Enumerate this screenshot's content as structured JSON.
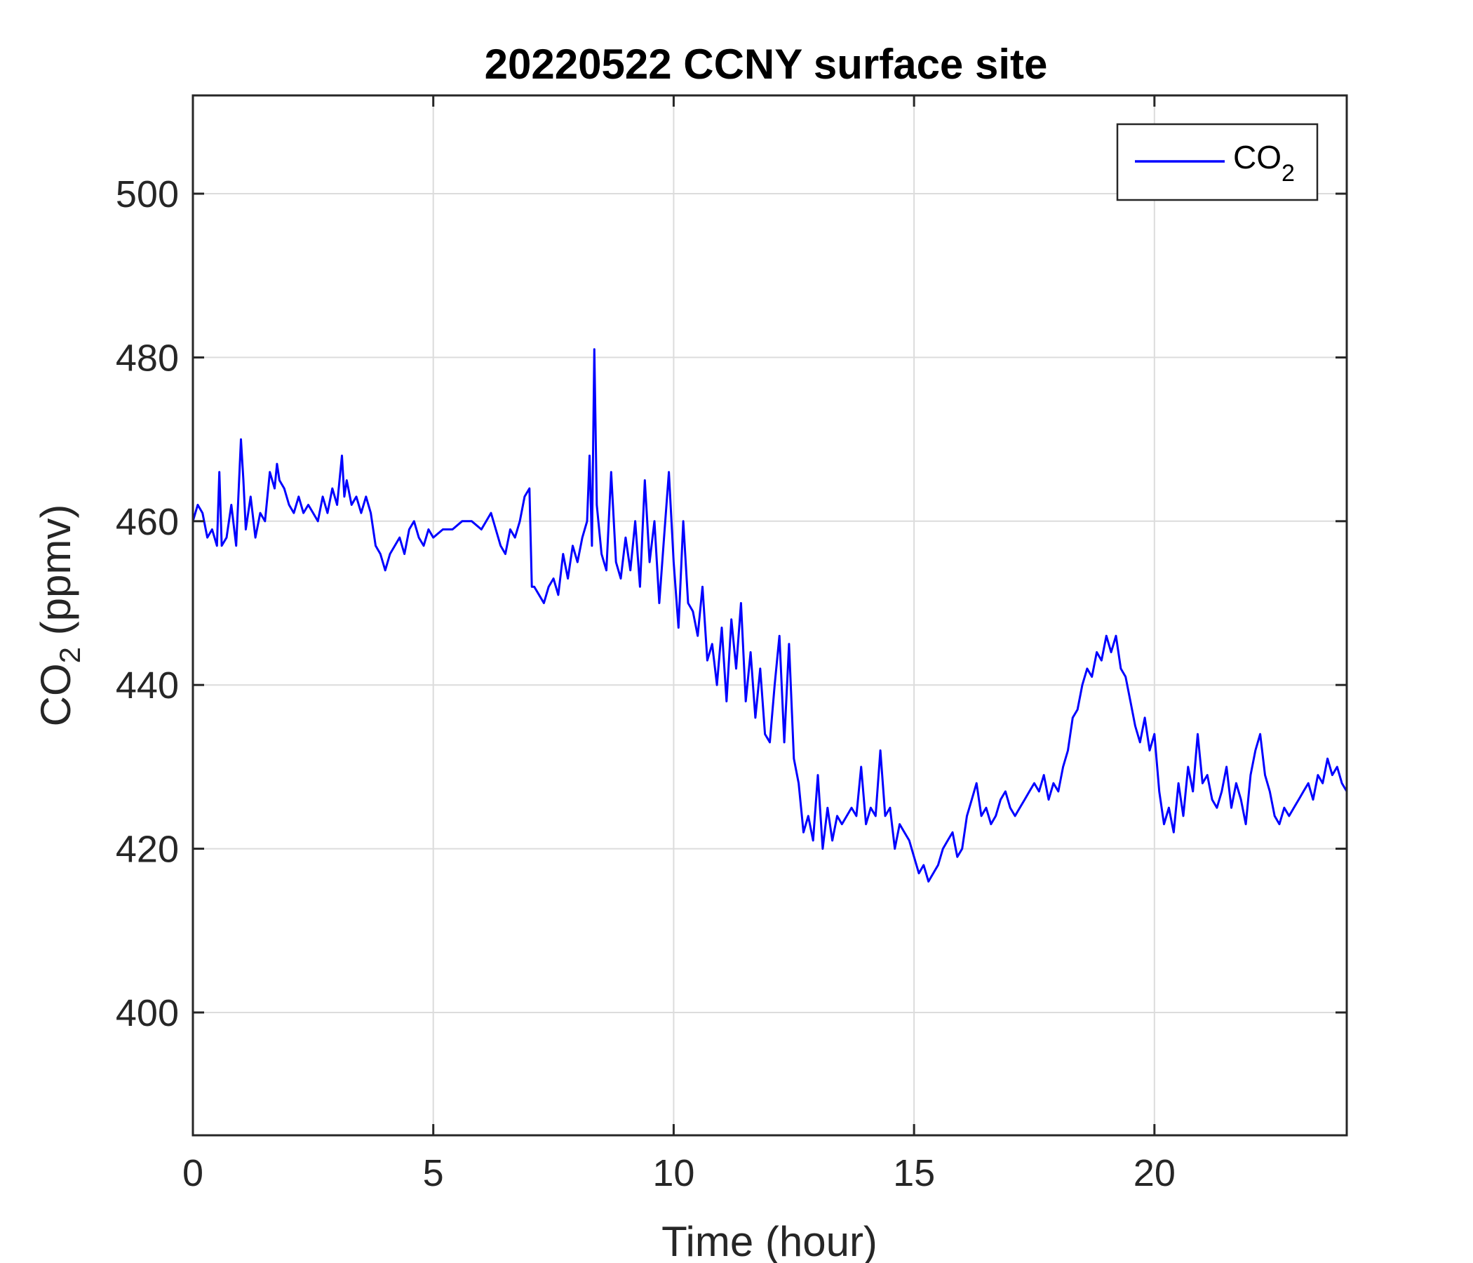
{
  "chart_data": {
    "type": "line",
    "title": "20220522 CCNY surface site",
    "xlabel": "Time (hour)",
    "ylabel": {
      "main": "CO",
      "sub": "2",
      "rest": " (ppmv)"
    },
    "xlim": [
      0,
      24
    ],
    "ylim": [
      385,
      512
    ],
    "xticks": [
      0,
      5,
      10,
      15,
      20
    ],
    "yticks": [
      400,
      420,
      440,
      460,
      480,
      500
    ],
    "grid": true,
    "legend_position": "top-right",
    "series": [
      {
        "name": {
          "main": "CO",
          "sub": "2"
        },
        "color": "#0000ff",
        "x": [
          0,
          0.1,
          0.2,
          0.3,
          0.4,
          0.5,
          0.55,
          0.6,
          0.7,
          0.8,
          0.9,
          1.0,
          1.05,
          1.1,
          1.2,
          1.3,
          1.4,
          1.5,
          1.6,
          1.7,
          1.75,
          1.8,
          1.9,
          2.0,
          2.1,
          2.2,
          2.3,
          2.4,
          2.5,
          2.6,
          2.7,
          2.8,
          2.9,
          3.0,
          3.1,
          3.15,
          3.2,
          3.3,
          3.4,
          3.5,
          3.6,
          3.7,
          3.8,
          3.9,
          4.0,
          4.1,
          4.2,
          4.3,
          4.4,
          4.5,
          4.6,
          4.7,
          4.8,
          4.9,
          5.0,
          5.2,
          5.4,
          5.6,
          5.8,
          6.0,
          6.2,
          6.4,
          6.5,
          6.6,
          6.7,
          6.8,
          6.9,
          7.0,
          7.05,
          7.1,
          7.2,
          7.3,
          7.4,
          7.5,
          7.6,
          7.7,
          7.8,
          7.9,
          8.0,
          8.1,
          8.2,
          8.25,
          8.3,
          8.35,
          8.4,
          8.5,
          8.6,
          8.7,
          8.8,
          8.9,
          9.0,
          9.1,
          9.2,
          9.3,
          9.4,
          9.5,
          9.6,
          9.7,
          9.8,
          9.9,
          10.0,
          10.1,
          10.2,
          10.3,
          10.4,
          10.5,
          10.6,
          10.7,
          10.8,
          10.9,
          11.0,
          11.1,
          11.2,
          11.3,
          11.4,
          11.5,
          11.6,
          11.7,
          11.8,
          11.9,
          12.0,
          12.1,
          12.2,
          12.3,
          12.4,
          12.5,
          12.6,
          12.7,
          12.8,
          12.9,
          13.0,
          13.1,
          13.2,
          13.3,
          13.4,
          13.5,
          13.6,
          13.7,
          13.8,
          13.9,
          14.0,
          14.1,
          14.2,
          14.3,
          14.4,
          14.5,
          14.6,
          14.7,
          14.8,
          14.9,
          15.0,
          15.1,
          15.2,
          15.3,
          15.4,
          15.5,
          15.6,
          15.7,
          15.8,
          15.9,
          16.0,
          16.1,
          16.2,
          16.3,
          16.4,
          16.5,
          16.6,
          16.7,
          16.8,
          16.9,
          17.0,
          17.1,
          17.2,
          17.3,
          17.4,
          17.5,
          17.6,
          17.7,
          17.8,
          17.9,
          18.0,
          18.1,
          18.2,
          18.3,
          18.4,
          18.5,
          18.6,
          18.7,
          18.8,
          18.9,
          19.0,
          19.1,
          19.2,
          19.3,
          19.4,
          19.5,
          19.6,
          19.7,
          19.8,
          19.9,
          20.0,
          20.1,
          20.2,
          20.3,
          20.4,
          20.5,
          20.6,
          20.7,
          20.8,
          20.9,
          21.0,
          21.1,
          21.2,
          21.3,
          21.4,
          21.5,
          21.6,
          21.7,
          21.8,
          21.9,
          22.0,
          22.1,
          22.2,
          22.3,
          22.4,
          22.5,
          22.6,
          22.7,
          22.8,
          22.9,
          23.0,
          23.1,
          23.2,
          23.3,
          23.4,
          23.5,
          23.6,
          23.7,
          23.8,
          23.9,
          24.0
        ],
        "y": [
          460,
          462,
          461,
          458,
          459,
          457,
          466,
          457,
          458,
          462,
          457,
          470,
          465,
          459,
          463,
          458,
          461,
          460,
          466,
          464,
          467,
          465,
          464,
          462,
          461,
          463,
          461,
          462,
          461,
          460,
          463,
          461,
          464,
          462,
          468,
          463,
          465,
          462,
          463,
          461,
          463,
          461,
          457,
          456,
          454,
          456,
          457,
          458,
          456,
          459,
          460,
          458,
          457,
          459,
          458,
          459,
          459,
          460,
          460,
          459,
          461,
          457,
          456,
          459,
          458,
          460,
          463,
          464,
          452,
          452,
          451,
          450,
          452,
          453,
          451,
          456,
          453,
          457,
          455,
          458,
          460,
          468,
          457,
          481,
          462,
          456,
          454,
          466,
          455,
          453,
          458,
          454,
          460,
          452,
          465,
          455,
          460,
          450,
          458,
          466,
          455,
          447,
          460,
          450,
          449,
          446,
          452,
          443,
          445,
          440,
          447,
          438,
          448,
          442,
          450,
          438,
          444,
          436,
          442,
          434,
          433,
          440,
          446,
          433,
          445,
          431,
          428,
          422,
          424,
          421,
          429,
          420,
          425,
          421,
          424,
          423,
          424,
          425,
          424,
          430,
          423,
          425,
          424,
          432,
          424,
          425,
          420,
          423,
          422,
          421,
          419,
          417,
          418,
          416,
          417,
          418,
          420,
          421,
          422,
          419,
          420,
          424,
          426,
          428,
          424,
          425,
          423,
          424,
          426,
          427,
          425,
          424,
          425,
          426,
          427,
          428,
          427,
          429,
          426,
          428,
          427,
          430,
          432,
          436,
          437,
          440,
          442,
          441,
          444,
          443,
          446,
          444,
          446,
          442,
          441,
          438,
          435,
          433,
          436,
          432,
          434,
          427,
          423,
          425,
          422,
          428,
          424,
          430,
          427,
          434,
          428,
          429,
          426,
          425,
          427,
          430,
          425,
          428,
          426,
          423,
          429,
          432,
          434,
          429,
          427,
          424,
          423,
          425,
          424,
          425,
          426,
          427,
          428,
          426,
          429,
          428,
          431,
          429,
          430,
          428,
          427
        ]
      }
    ]
  }
}
